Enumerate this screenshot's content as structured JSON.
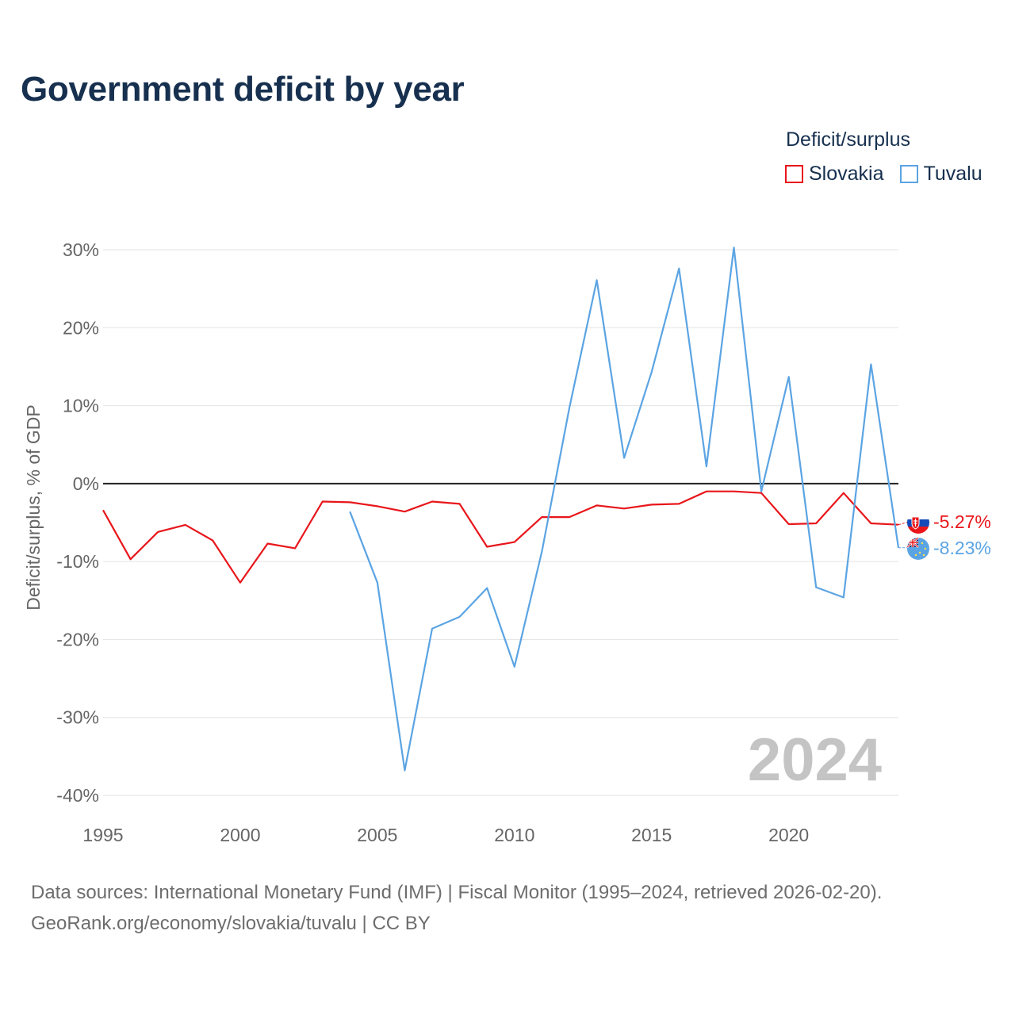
{
  "title": "Government deficit by year",
  "legend": {
    "title": "Deficit/surplus",
    "items": [
      {
        "label": "Slovakia",
        "color": "#e8161b"
      },
      {
        "label": "Tuvalu",
        "color": "#5ba4e3"
      }
    ]
  },
  "year_watermark": "2024",
  "end_labels": {
    "slovakia": "-5.27%",
    "tuvalu": "-8.23%"
  },
  "footer": {
    "sources": "Data sources: International Monetary Fund (IMF) | Fiscal Monitor (1995–2024, retrieved 2026-02-20).",
    "credit": "GeoRank.org/economy/slovakia/tuvalu | CC BY"
  },
  "chart_data": {
    "type": "line",
    "title": "Government deficit by year",
    "xlabel": "",
    "ylabel": "Deficit/surplus, % of GDP",
    "xlim": [
      1995,
      2024
    ],
    "ylim": [
      -40,
      30
    ],
    "x_ticks": [
      1995,
      2000,
      2005,
      2010,
      2015,
      2020
    ],
    "x_tick_labels": [
      "1995",
      "2000",
      "2005",
      "2010",
      "2015",
      "2020"
    ],
    "y_ticks": [
      30,
      20,
      10,
      0,
      -10,
      -20,
      -30,
      -40
    ],
    "y_tick_labels": [
      "30%",
      "20%",
      "10%",
      "0%",
      "-10%",
      "-20%",
      "-30%",
      "-40%"
    ],
    "grid": true,
    "legend_position": "top-right",
    "series": [
      {
        "name": "Slovakia",
        "color": "#e8161b",
        "x": [
          1995,
          1996,
          1997,
          1998,
          1999,
          2000,
          2001,
          2002,
          2003,
          2004,
          2005,
          2006,
          2007,
          2008,
          2009,
          2010,
          2011,
          2012,
          2013,
          2014,
          2015,
          2016,
          2017,
          2018,
          2019,
          2020,
          2021,
          2022,
          2023,
          2024
        ],
        "values": [
          -3.4,
          -9.7,
          -6.2,
          -5.3,
          -7.3,
          -12.7,
          -7.7,
          -8.3,
          -2.3,
          -2.4,
          -2.9,
          -3.6,
          -2.3,
          -2.6,
          -8.1,
          -7.5,
          -4.3,
          -4.3,
          -2.8,
          -3.2,
          -2.7,
          -2.6,
          -1.0,
          -1.0,
          -1.2,
          -5.2,
          -5.1,
          -1.2,
          -5.1,
          -5.27
        ]
      },
      {
        "name": "Tuvalu",
        "color": "#5ba4e3",
        "x": [
          2004,
          2005,
          2006,
          2007,
          2008,
          2009,
          2010,
          2011,
          2012,
          2013,
          2014,
          2015,
          2016,
          2017,
          2018,
          2019,
          2020,
          2021,
          2022,
          2023,
          2024
        ],
        "values": [
          -3.6,
          -12.7,
          -36.8,
          -18.6,
          -17.1,
          -13.4,
          -23.5,
          -8.7,
          9.7,
          26.1,
          3.3,
          14.3,
          27.6,
          2.2,
          30.3,
          -1.0,
          13.7,
          -13.3,
          -14.6,
          15.3,
          -8.23
        ]
      }
    ]
  }
}
